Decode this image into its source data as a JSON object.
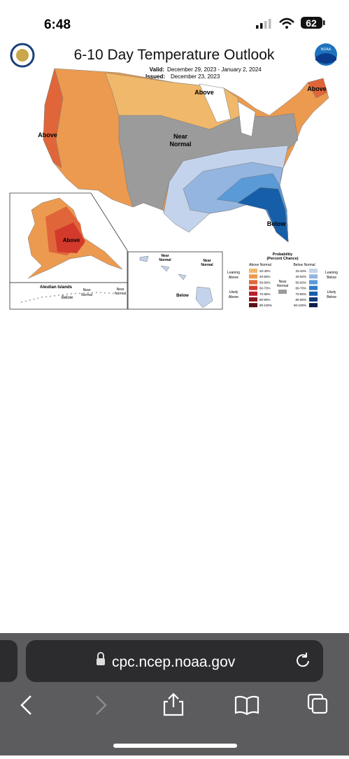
{
  "status_bar": {
    "time": "6:48",
    "battery": "62"
  },
  "map": {
    "title": "6-10 Day Temperature Outlook",
    "valid_label": "Valid:",
    "valid_dates": "December 29, 2023 - January 2, 2024",
    "issued_label": "Issued:",
    "issued_date": "December 23, 2023",
    "noaa_logo": "NOAA",
    "region_labels": [
      "Above",
      "Above",
      "Above",
      "Near",
      "Normal",
      "Below",
      "Above"
    ],
    "aleutian": {
      "title": "Aleutian Islands",
      "labels": [
        "Below",
        "Near",
        "Normal",
        "Near",
        "Normal"
      ]
    },
    "hawaii": {
      "labels": [
        "Near",
        "Normal",
        "Near",
        "Normal",
        "Below"
      ]
    },
    "legend": {
      "title": "Probability",
      "subtitle": "(Percent Chance)",
      "above_header": "Above Normal",
      "below_header": "Below Normal",
      "leaning_above": [
        "Leaning",
        "Above"
      ],
      "likely_above": [
        "Likely",
        "Above"
      ],
      "near_normal": [
        "Near",
        "Normal"
      ],
      "leaning_below": [
        "Leaning",
        "Below"
      ],
      "likely_below": [
        "Likely",
        "Below"
      ],
      "above_bins": [
        "33-40%",
        "40-50%",
        "50-60%",
        "60-70%",
        "70-80%",
        "80-90%",
        "90-100%"
      ],
      "below_bins": [
        "33-40%",
        "40-50%",
        "50-60%",
        "60-70%",
        "70-80%",
        "80-90%",
        "90-100%"
      ]
    }
  },
  "browser": {
    "url": "cpc.ncep.noaa.gov"
  }
}
